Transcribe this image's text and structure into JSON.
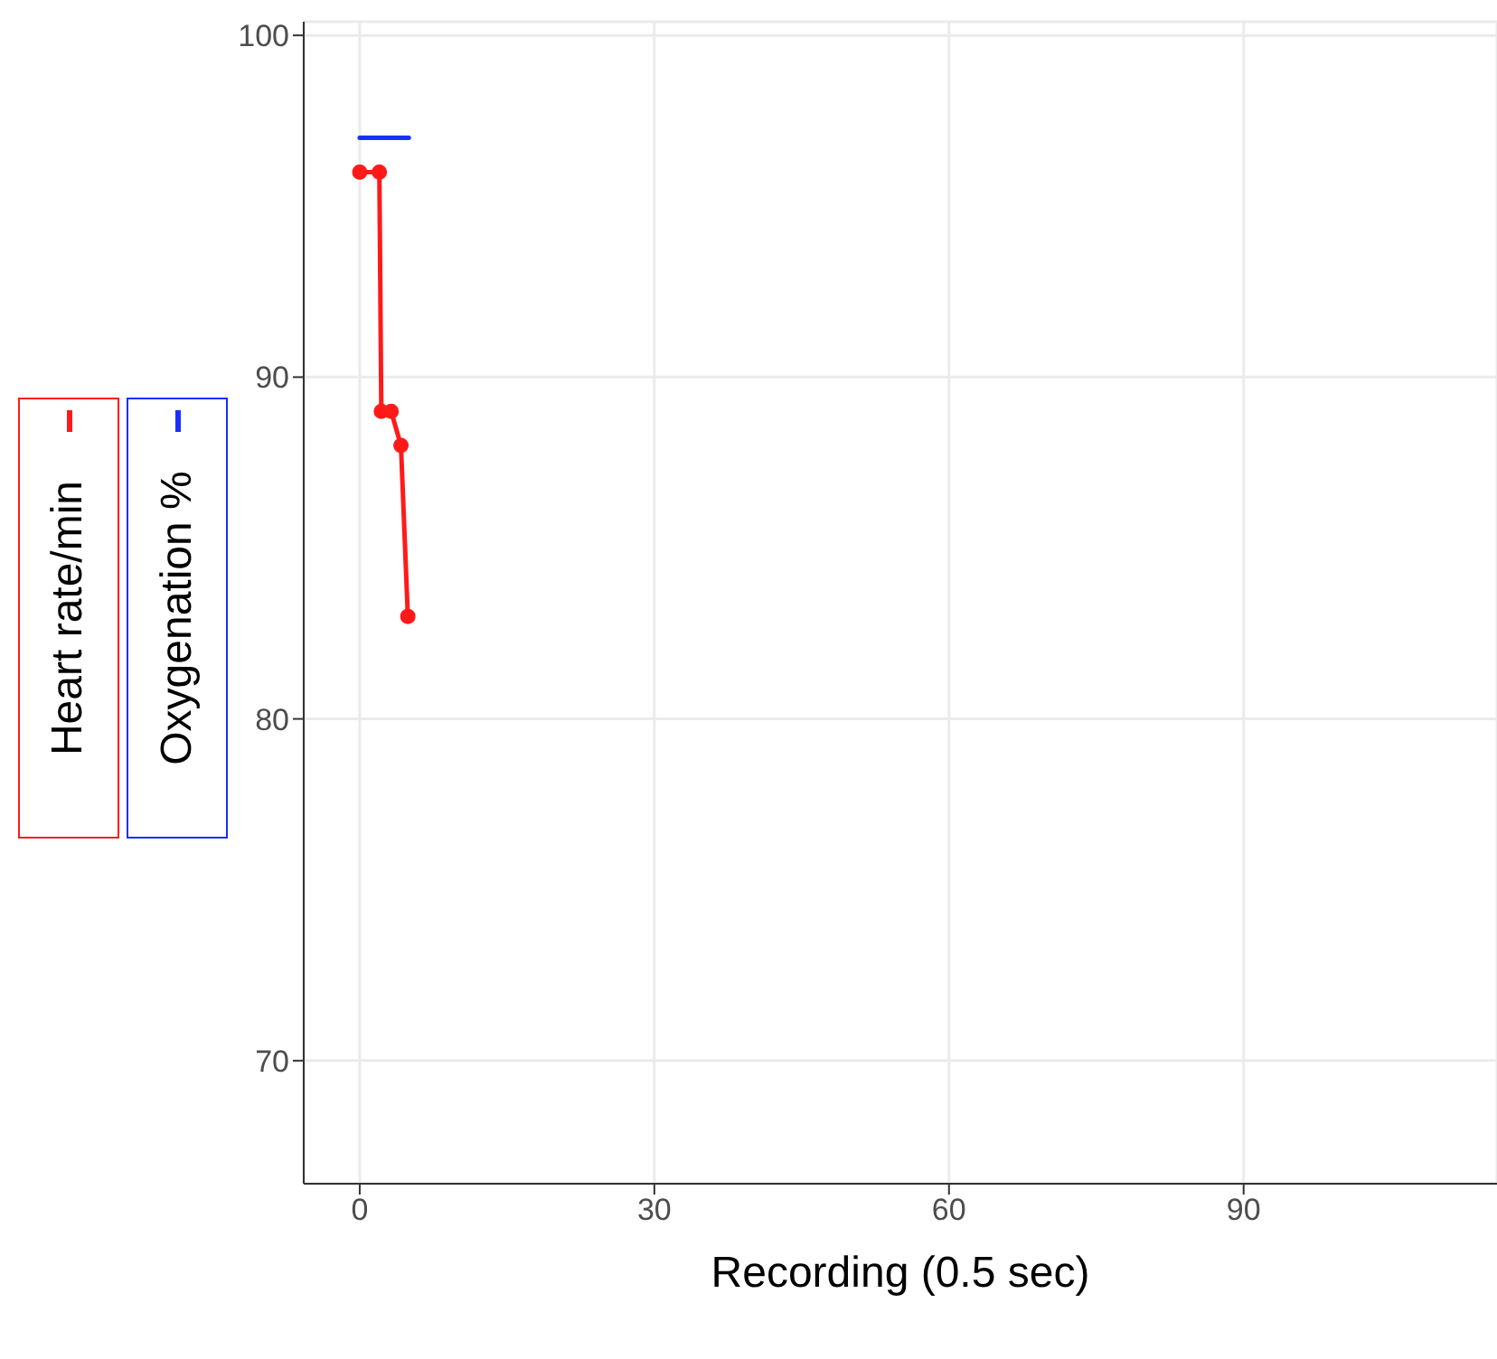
{
  "chart_data": {
    "type": "line",
    "xlabel": "Recording (0.5 sec)",
    "xlim": [
      -5.7,
      115.8
    ],
    "xticks": [
      0,
      30,
      60,
      90
    ],
    "ylim": [
      66.4,
      100.4
    ],
    "yticks": [
      70,
      80,
      90,
      100
    ],
    "grid": true,
    "legend": "left",
    "series": [
      {
        "name": "Heart rate/min",
        "color": "#ff1a1a",
        "x": [
          0,
          2,
          2.2,
          3.2,
          4.2,
          4.9
        ],
        "values": [
          96,
          96,
          89,
          89,
          88,
          83
        ],
        "marker": "circle"
      },
      {
        "name": "Oxygenation %",
        "color": "#1a2eff",
        "x": [
          0,
          5
        ],
        "values": [
          97,
          97
        ],
        "marker": "none"
      }
    ]
  }
}
